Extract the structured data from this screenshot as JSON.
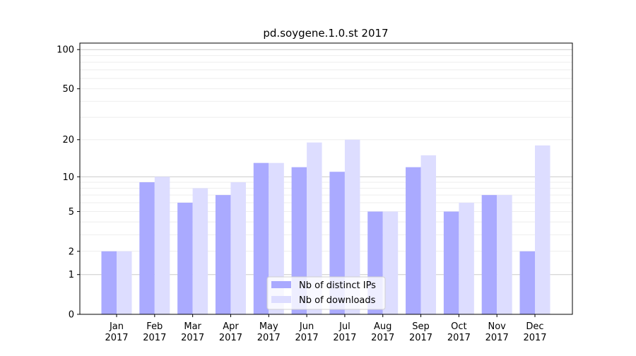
{
  "chart_data": {
    "type": "bar",
    "title": "pd.soygene.1.0.st 2017",
    "xlabel": "",
    "ylabel": "",
    "yscale": "symlog",
    "ylim": [
      0,
      112
    ],
    "yticks": [
      0,
      1,
      2,
      5,
      10,
      20,
      50,
      100
    ],
    "ytick_labels": [
      "0",
      "1",
      "2",
      "5",
      "10",
      "20",
      "50",
      "100"
    ],
    "grid": true,
    "legend_position": "bottom-center",
    "categories": [
      "Jan\n2017",
      "Feb\n2017",
      "Mar\n2017",
      "Apr\n2017",
      "May\n2017",
      "Jun\n2017",
      "Jul\n2017",
      "Aug\n2017",
      "Sep\n2017",
      "Oct\n2017",
      "Nov\n2017",
      "Dec\n2017"
    ],
    "series": [
      {
        "name": "Nb of distinct IPs",
        "color": "#aaaaff",
        "values": [
          2,
          9,
          6,
          7,
          13,
          12,
          11,
          5,
          12,
          5,
          7,
          2
        ]
      },
      {
        "name": "Nb of downloads",
        "color": "#ddddff",
        "values": [
          2,
          10,
          8,
          9,
          13,
          19,
          20,
          5,
          15,
          6,
          7,
          18
        ]
      }
    ]
  }
}
